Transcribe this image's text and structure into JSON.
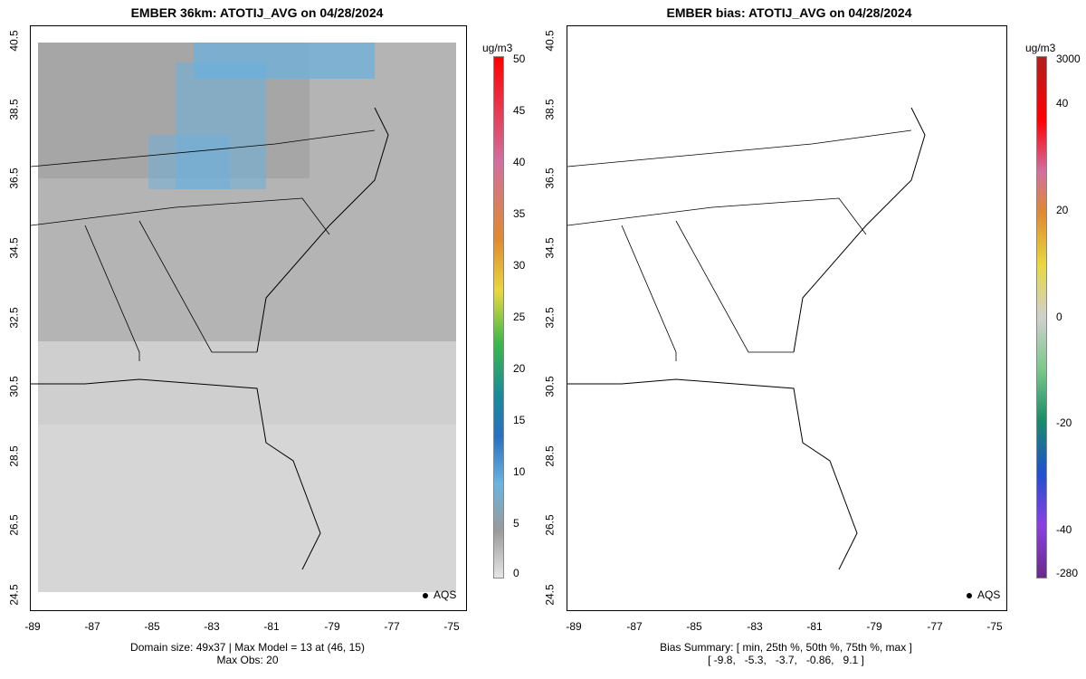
{
  "left_panel": {
    "title": "EMBER 36km: ATOTIJ_AVG on 04/28/2024",
    "x_ticks": [
      "-89",
      "-87",
      "-85",
      "-83",
      "-81",
      "-79",
      "-77",
      "-75"
    ],
    "y_ticks": [
      "24.5",
      "26.5",
      "28.5",
      "30.5",
      "32.5",
      "34.5",
      "36.5",
      "38.5",
      "40.5"
    ],
    "footer_line1": "Domain size: 49x37 | Max Model = 13 at (46, 15)",
    "footer_line2": "Max Obs: 20",
    "legend_label": "AQS",
    "colorbar_unit": "ug/m3",
    "colorbar_ticks": [
      "50",
      "45",
      "40",
      "35",
      "30",
      "25",
      "20",
      "15",
      "10",
      "5",
      "0"
    ]
  },
  "right_panel": {
    "title": "EMBER bias: ATOTIJ_AVG on 04/28/2024",
    "x_ticks": [
      "-89",
      "-87",
      "-85",
      "-83",
      "-81",
      "-79",
      "-77",
      "-75"
    ],
    "y_ticks": [
      "24.5",
      "26.5",
      "28.5",
      "30.5",
      "32.5",
      "34.5",
      "36.5",
      "38.5",
      "40.5"
    ],
    "footer_line1": "Bias Summary: [ min, 25th %, 50th %, 75th %, max ]",
    "footer_line2": "[ -9.8,   -5.3,   -3.7,   -0.86,   9.1 ]",
    "legend_label": "AQS",
    "colorbar_unit": "ug/m3",
    "colorbar_ticks": [
      "3000",
      "40",
      "20",
      "0",
      "-20",
      "-40",
      "-280"
    ]
  },
  "colors": {
    "model_gray_dark": "#9a9a9a",
    "model_gray_light": "#dedede",
    "model_blue": "#5aaee0",
    "obs_blue": "#6cb4e2",
    "obs_gray": "#9a9a9a",
    "bias_green": "#8ecf8e",
    "bias_lightgreen": "#c6e6c0",
    "bias_gray": "#d8d8d8",
    "bias_yellow": "#efe27a"
  }
}
